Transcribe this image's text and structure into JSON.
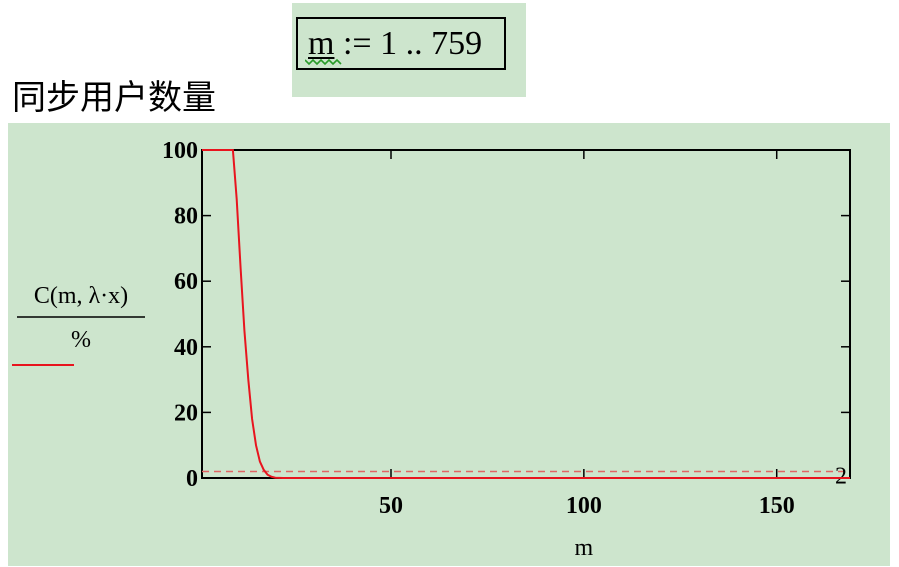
{
  "label": "同步用户数量",
  "range_definition": {
    "variable": "m",
    "operator": ":=",
    "range": "1 .. 759"
  },
  "colors": {
    "plot_background": "#cde5cd",
    "series_line": "#e8141e",
    "reference_line": "#e06464"
  },
  "chart_data": {
    "type": "line",
    "xlabel": "m",
    "ylabel_numerator": "C(m, λ·x)",
    "ylabel_denominator": "%",
    "xlim": [
      1,
      169
    ],
    "ylim": [
      0,
      100
    ],
    "x_ticks": [
      50,
      100,
      150
    ],
    "y_ticks": [
      0,
      20,
      40,
      60,
      80,
      100
    ],
    "grid": false,
    "series": [
      {
        "style": "solid",
        "x": [
          1,
          9,
          10,
          11,
          12,
          13,
          14,
          15,
          16,
          17,
          18,
          19,
          20,
          22,
          25,
          30,
          40,
          60,
          100,
          169
        ],
        "y": [
          100,
          100,
          85,
          64,
          45,
          30,
          18,
          10,
          5,
          2.5,
          1,
          0.4,
          0.1,
          0,
          0,
          0,
          0,
          0,
          0,
          0
        ]
      }
    ],
    "reference_lines": [
      {
        "axis": "y",
        "value": 2,
        "style": "dashed",
        "label": "2"
      }
    ]
  }
}
